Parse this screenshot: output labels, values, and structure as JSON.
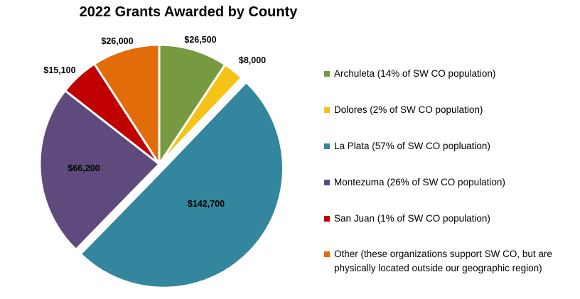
{
  "chart_data": {
    "type": "pie",
    "title": "2022 Grants Awarded by County",
    "slices": [
      {
        "category": "Archuleta (14% of SW CO population)",
        "value": 26500,
        "label": "$26,500",
        "color": "#77993F"
      },
      {
        "category": "Dolores (2% of SW CO population)",
        "value": 8000,
        "label": "$8,000",
        "color": "#F5C316"
      },
      {
        "category": "La Plata (57% of SW CO popluation)",
        "value": 142700,
        "label": "$142,700",
        "color": "#33869D",
        "exploded": true
      },
      {
        "category": "Montezuma (26% of SW CO population)",
        "value": 66200,
        "label": "$66,200",
        "color": "#5E4A7C"
      },
      {
        "category": "San Juan (1% of SW CO population)",
        "value": 15100,
        "label": "$15,100",
        "color": "#C00000"
      },
      {
        "category": "Other (these organizations support SW CO, but are physically located outside our geographic region)",
        "value": 26000,
        "label": "$26,000",
        "color": "#E26B0A"
      }
    ],
    "legend_position": "right"
  }
}
